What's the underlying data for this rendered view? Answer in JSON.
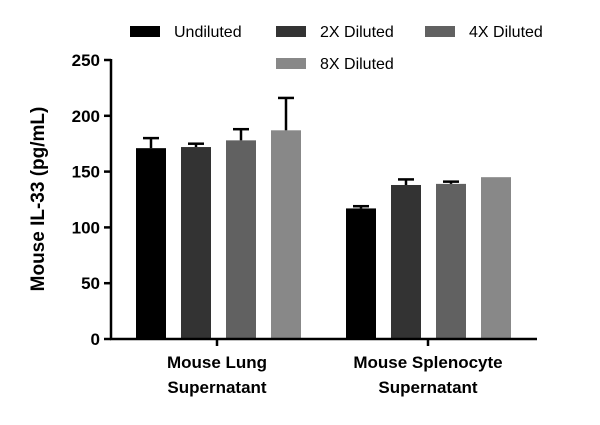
{
  "chart_data": {
    "type": "bar",
    "title": "",
    "xlabel": "",
    "ylabel": "Mouse IL-33 (pg/mL)",
    "ylim": [
      0,
      250
    ],
    "yticks": [
      0,
      50,
      100,
      150,
      200,
      250
    ],
    "grid": false,
    "legend_position": "top",
    "categories": [
      [
        "Mouse Lung",
        "Supernatant"
      ],
      [
        "Mouse Splenocyte",
        "Supernatant"
      ]
    ],
    "series": [
      {
        "name": "Undiluted",
        "values": [
          171,
          117
        ],
        "errors": [
          9,
          2
        ],
        "color": "#000000"
      },
      {
        "name": "2X Diluted",
        "values": [
          172,
          138
        ],
        "errors": [
          3,
          5
        ],
        "color": "#333333"
      },
      {
        "name": "4X Diluted",
        "values": [
          178,
          139
        ],
        "errors": [
          10,
          2
        ],
        "color": "#616161"
      },
      {
        "name": "8X Diluted",
        "values": [
          187,
          145
        ],
        "errors": [
          29,
          0
        ],
        "color": "#888888"
      }
    ]
  }
}
